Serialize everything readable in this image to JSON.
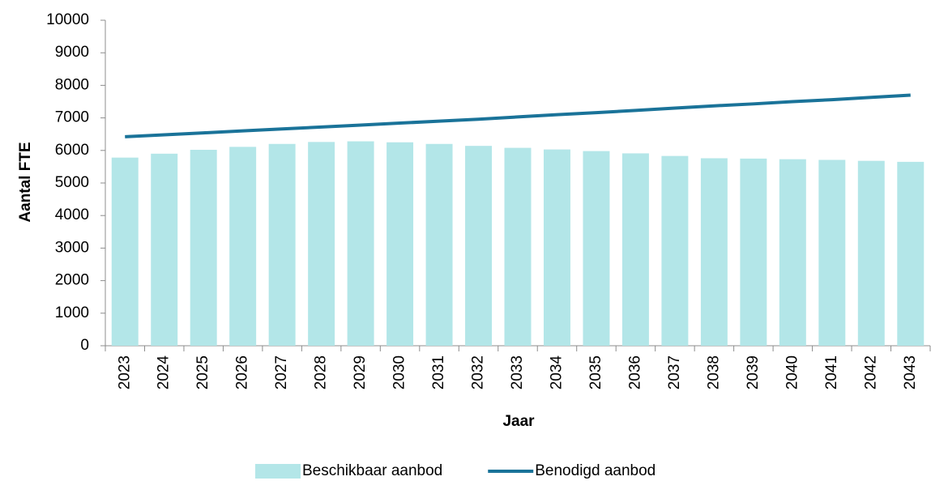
{
  "chart_data": {
    "type": "bar",
    "x_label": "Jaar",
    "y_label": "Aantal FTE",
    "categories": [
      "2023",
      "2024",
      "2025",
      "2026",
      "2027",
      "2028",
      "2029",
      "2030",
      "2031",
      "2032",
      "2033",
      "2034",
      "2035",
      "2036",
      "2037",
      "2038",
      "2039",
      "2040",
      "2041",
      "2042",
      "2043"
    ],
    "series": [
      {
        "name": "Beschikbaar aanbod",
        "type": "bar",
        "color": "#b3e6e8",
        "values": [
          5780,
          5900,
          6020,
          6110,
          6200,
          6260,
          6280,
          6250,
          6200,
          6140,
          6080,
          6030,
          5980,
          5910,
          5830,
          5760,
          5750,
          5730,
          5710,
          5680,
          5650
        ]
      },
      {
        "name": "Benodigd aanbod",
        "type": "line",
        "color": "#1a7399",
        "values": [
          6420,
          6480,
          6540,
          6600,
          6660,
          6720,
          6780,
          6840,
          6900,
          6960,
          7030,
          7100,
          7160,
          7230,
          7300,
          7370,
          7430,
          7500,
          7560,
          7630,
          7700
        ]
      }
    ],
    "ylim": [
      0,
      10000
    ],
    "yticks": [
      0,
      1000,
      2000,
      3000,
      4000,
      5000,
      6000,
      7000,
      8000,
      9000,
      10000
    ],
    "grid": false,
    "legend": "bottom"
  }
}
